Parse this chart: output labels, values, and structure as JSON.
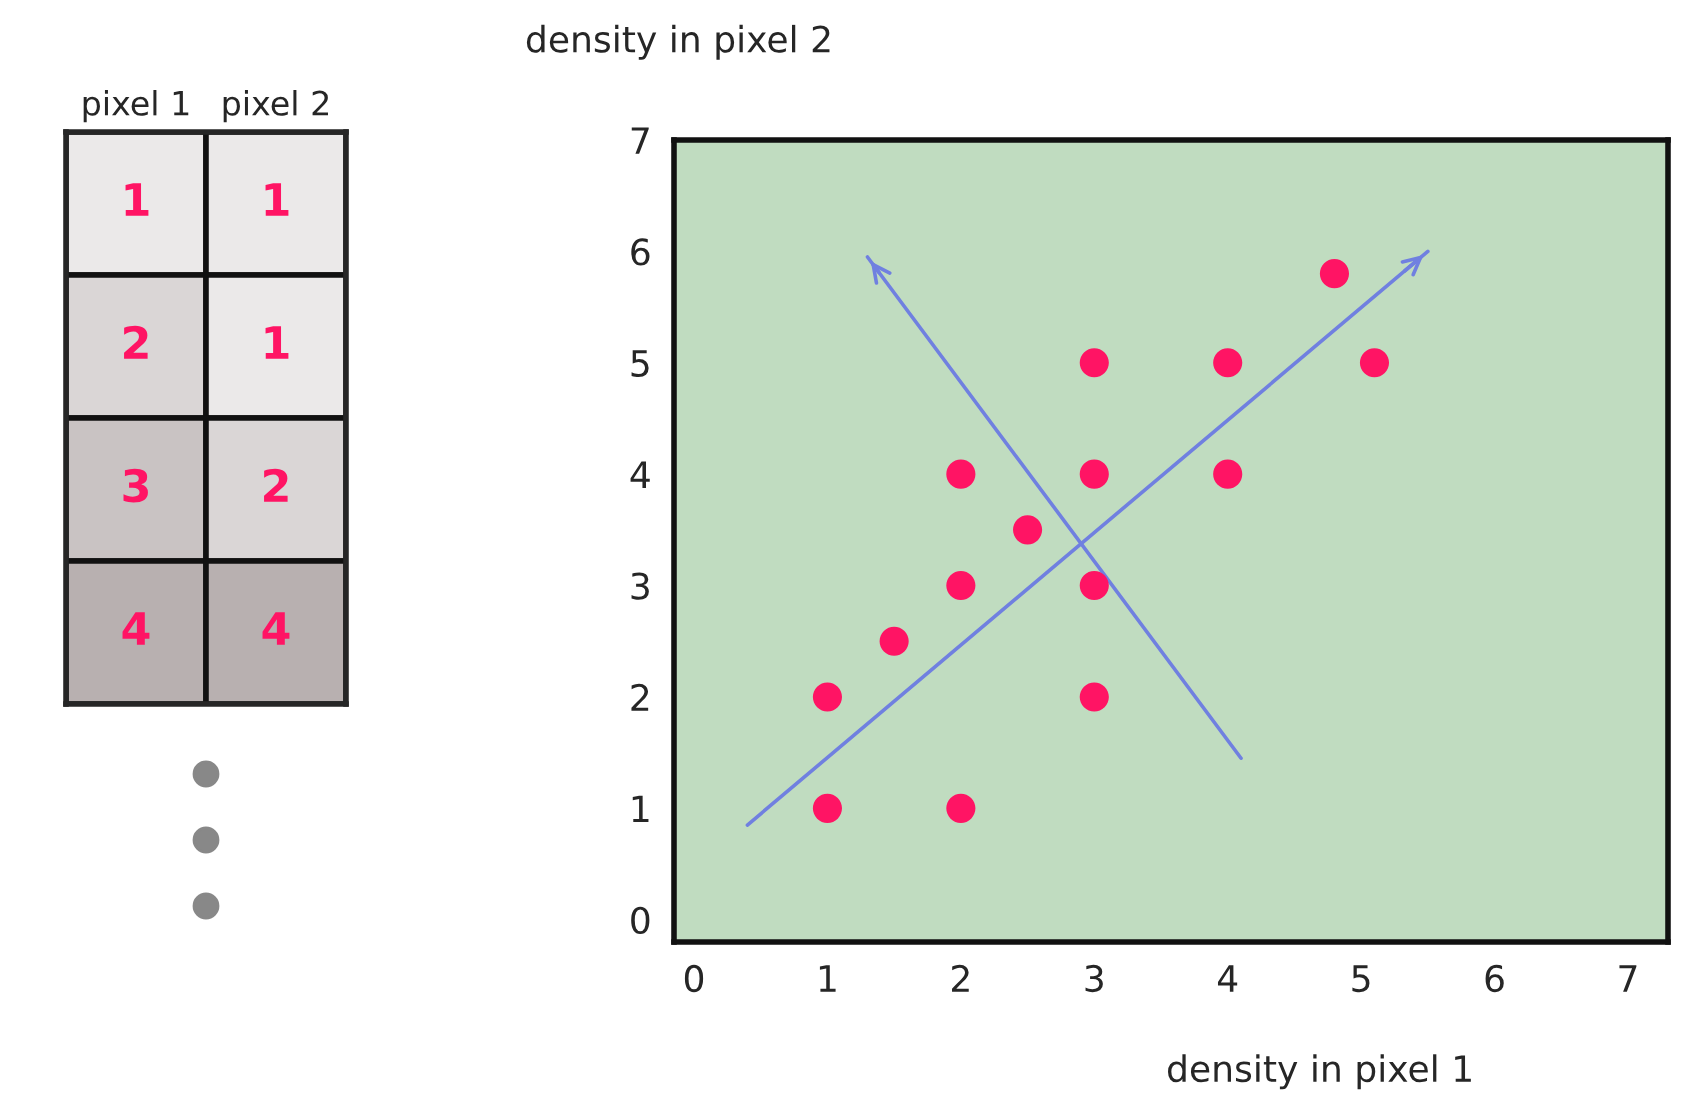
{
  "chart_data": [
    {
      "type": "heatmap",
      "categories": [
        "pixel 1",
        "pixel 2"
      ],
      "y_categories": [
        null,
        null,
        null,
        null
      ],
      "cells": [
        [
          1,
          1
        ],
        [
          2,
          1
        ],
        [
          3,
          2
        ],
        [
          4,
          4
        ]
      ],
      "cell_labels": [
        [
          "1",
          "1"
        ],
        [
          "2",
          "1"
        ],
        [
          "3",
          "2"
        ],
        [
          "4",
          "4"
        ]
      ]
    },
    {
      "type": "scatter",
      "xlabel": "density in pixel 1",
      "ylabel": "density in pixel 2",
      "xlim": [
        -0.15,
        7.3
      ],
      "ylim": [
        -0.2,
        7
      ],
      "xticks": [
        0,
        1,
        2,
        3,
        4,
        5,
        6,
        7
      ],
      "yticks": [
        0,
        1,
        2,
        3,
        4,
        5,
        6,
        7
      ],
      "grid": false,
      "legend": false,
      "marker": "circle",
      "series": [
        {
          "color": "#ff1464",
          "x": [
            1,
            1,
            2,
            1.5,
            2,
            2,
            2.5,
            3,
            3,
            3,
            3,
            4,
            4,
            4.8,
            5.1
          ],
          "values": [
            1,
            2,
            1,
            2.5,
            3,
            4,
            3.5,
            2,
            3,
            4,
            5,
            4,
            5,
            5.8,
            5
          ]
        },
        {
          "type": "line",
          "marker": "none",
          "color": "#7080e0",
          "x": [
            0.4,
            5.5
          ],
          "values": [
            0.85,
            6
          ]
        },
        {
          "type": "line",
          "marker": "none",
          "color": "#7080e0",
          "x": [
            4.1,
            1.3
          ],
          "values": [
            1.45,
            5.95
          ]
        }
      ]
    }
  ]
}
